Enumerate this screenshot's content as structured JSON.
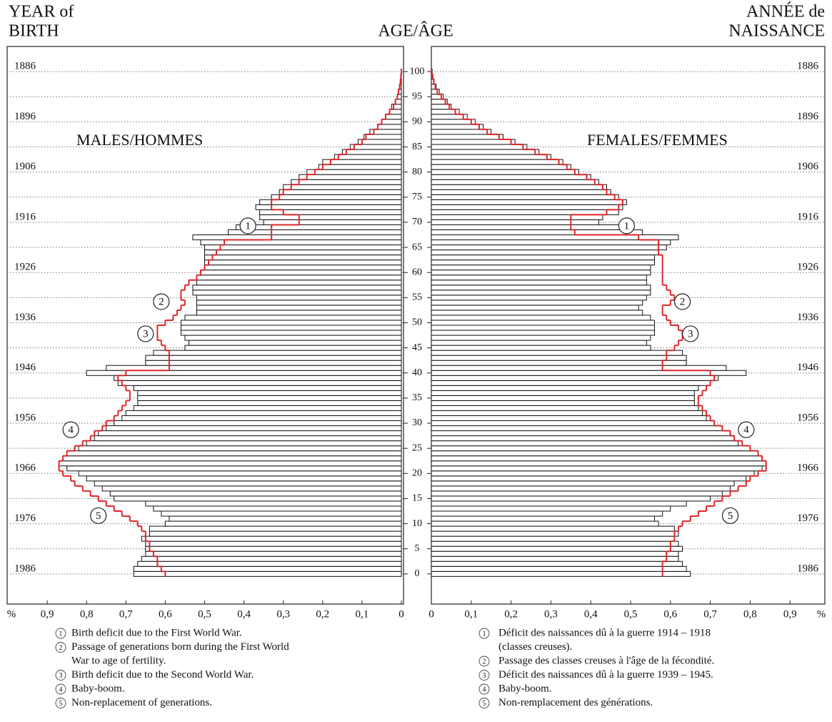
{
  "chart_data": {
    "type": "pyramid",
    "title": "AGE/ÂGE",
    "ylabel_left": [
      "YEAR of",
      "BIRTH"
    ],
    "ylabel_right": [
      "ANNÉE de",
      "NAISSANCE"
    ],
    "xlabel": "%",
    "ages": [
      0,
      1,
      2,
      3,
      4,
      5,
      6,
      7,
      8,
      9,
      10,
      11,
      12,
      13,
      14,
      15,
      16,
      17,
      18,
      19,
      20,
      21,
      22,
      23,
      24,
      25,
      26,
      27,
      28,
      29,
      30,
      31,
      32,
      33,
      34,
      35,
      36,
      37,
      38,
      39,
      40,
      41,
      42,
      43,
      44,
      45,
      46,
      47,
      48,
      49,
      50,
      51,
      52,
      53,
      54,
      55,
      56,
      57,
      58,
      59,
      60,
      61,
      62,
      63,
      64,
      65,
      66,
      67,
      68,
      69,
      70,
      71,
      72,
      73,
      74,
      75,
      76,
      77,
      78,
      79,
      80,
      81,
      82,
      83,
      84,
      85,
      86,
      87,
      88,
      89,
      90,
      91,
      92,
      93,
      94,
      95,
      96,
      97,
      98,
      99,
      100
    ],
    "ylim": [
      -6,
      105
    ],
    "yticks": [
      0,
      5,
      10,
      15,
      20,
      25,
      30,
      35,
      40,
      45,
      50,
      55,
      60,
      65,
      70,
      75,
      80,
      85,
      90,
      95,
      100
    ],
    "y2lim": [
      1992,
      1881
    ],
    "y2ticks": [
      1886,
      1896,
      1906,
      1916,
      1926,
      1936,
      1946,
      1956,
      1966,
      1976,
      1986
    ],
    "xlim": [
      0,
      1.0
    ],
    "xticks": [
      0,
      {
        "value": 0.1,
        "label": "0,1"
      },
      {
        "value": 0.2,
        "label": "0,2"
      },
      {
        "value": 0.3,
        "label": "0,3"
      },
      {
        "value": 0.4,
        "label": "0,4"
      },
      {
        "value": 0.5,
        "label": "0,5"
      },
      {
        "value": 0.6,
        "label": "0,6"
      },
      {
        "value": 0.7,
        "label": "0,7"
      },
      {
        "value": 0.8,
        "label": "0,8"
      },
      {
        "value": 0.9,
        "label": "0,9"
      }
    ],
    "grid": true,
    "series": [
      {
        "name": "MALES/HOMMES",
        "side": "left",
        "style": "bar",
        "color": "#ffffff",
        "values": [
          0.68,
          0.68,
          0.67,
          0.66,
          0.65,
          0.65,
          0.65,
          0.66,
          0.64,
          0.64,
          0.6,
          0.59,
          0.61,
          0.63,
          0.65,
          0.73,
          0.74,
          0.76,
          0.78,
          0.8,
          0.82,
          0.85,
          0.87,
          0.86,
          0.85,
          0.82,
          0.8,
          0.78,
          0.77,
          0.75,
          0.73,
          0.71,
          0.7,
          0.68,
          0.67,
          0.67,
          0.67,
          0.68,
          0.72,
          0.73,
          0.8,
          0.75,
          0.65,
          0.65,
          0.63,
          0.55,
          0.54,
          0.55,
          0.56,
          0.56,
          0.56,
          0.55,
          0.52,
          0.52,
          0.52,
          0.52,
          0.53,
          0.53,
          0.52,
          0.52,
          0.51,
          0.5,
          0.5,
          0.5,
          0.5,
          0.5,
          0.51,
          0.53,
          0.44,
          0.42,
          0.35,
          0.36,
          0.36,
          0.37,
          0.36,
          0.33,
          0.31,
          0.3,
          0.28,
          0.26,
          0.24,
          0.21,
          0.2,
          0.17,
          0.15,
          0.13,
          0.11,
          0.095,
          0.08,
          0.06,
          0.05,
          0.04,
          0.03,
          0.025,
          0.015,
          0.01,
          0.008,
          0.005,
          0.003,
          0.002,
          0.001
        ]
      },
      {
        "side": "left",
        "style": "step",
        "color": "#e0262a",
        "values": [
          0.6,
          0.61,
          0.62,
          0.62,
          0.63,
          0.64,
          0.64,
          0.65,
          0.65,
          0.66,
          0.67,
          0.69,
          0.71,
          0.73,
          0.75,
          0.77,
          0.79,
          0.81,
          0.83,
          0.84,
          0.86,
          0.87,
          0.87,
          0.86,
          0.85,
          0.83,
          0.81,
          0.79,
          0.78,
          0.76,
          0.75,
          0.73,
          0.72,
          0.71,
          0.7,
          0.69,
          0.69,
          0.7,
          0.71,
          0.72,
          0.7,
          0.59,
          0.59,
          0.59,
          0.59,
          0.6,
          0.61,
          0.62,
          0.62,
          0.62,
          0.6,
          0.58,
          0.57,
          0.56,
          0.55,
          0.56,
          0.56,
          0.55,
          0.54,
          0.52,
          0.51,
          0.5,
          0.49,
          0.48,
          0.47,
          0.46,
          0.45,
          0.33,
          0.33,
          0.33,
          0.26,
          0.26,
          0.3,
          0.33,
          0.33,
          0.31,
          0.3,
          0.28,
          0.26,
          0.24,
          0.22,
          0.2,
          0.18,
          0.16,
          0.14,
          0.12,
          0.1,
          0.09,
          0.07,
          0.06,
          0.05,
          0.04,
          0.03,
          0.02,
          0.015,
          0.01,
          0.007,
          0.004,
          0.002,
          0.001,
          0
        ]
      },
      {
        "name": "FEMALES/FEMMES",
        "side": "right",
        "style": "bar",
        "color": "#ffffff",
        "values": [
          0.65,
          0.64,
          0.63,
          0.62,
          0.62,
          0.63,
          0.62,
          0.61,
          0.62,
          0.61,
          0.57,
          0.56,
          0.58,
          0.6,
          0.64,
          0.7,
          0.73,
          0.75,
          0.76,
          0.79,
          0.81,
          0.83,
          0.84,
          0.83,
          0.82,
          0.8,
          0.77,
          0.76,
          0.75,
          0.73,
          0.71,
          0.69,
          0.68,
          0.67,
          0.66,
          0.66,
          0.66,
          0.67,
          0.7,
          0.72,
          0.79,
          0.74,
          0.64,
          0.64,
          0.63,
          0.55,
          0.54,
          0.55,
          0.56,
          0.56,
          0.56,
          0.55,
          0.53,
          0.52,
          0.53,
          0.54,
          0.55,
          0.55,
          0.54,
          0.54,
          0.55,
          0.55,
          0.56,
          0.56,
          0.57,
          0.59,
          0.6,
          0.62,
          0.53,
          0.5,
          0.42,
          0.43,
          0.47,
          0.48,
          0.49,
          0.47,
          0.45,
          0.44,
          0.42,
          0.4,
          0.37,
          0.35,
          0.33,
          0.3,
          0.27,
          0.24,
          0.21,
          0.18,
          0.15,
          0.13,
          0.11,
          0.09,
          0.07,
          0.05,
          0.04,
          0.03,
          0.02,
          0.012,
          0.007,
          0.004,
          0.002
        ]
      },
      {
        "side": "right",
        "style": "step",
        "color": "#e0262a",
        "values": [
          0.58,
          0.58,
          0.58,
          0.59,
          0.59,
          0.6,
          0.6,
          0.61,
          0.61,
          0.62,
          0.63,
          0.65,
          0.67,
          0.69,
          0.71,
          0.73,
          0.75,
          0.77,
          0.79,
          0.8,
          0.82,
          0.84,
          0.84,
          0.83,
          0.82,
          0.8,
          0.78,
          0.76,
          0.75,
          0.73,
          0.71,
          0.7,
          0.69,
          0.68,
          0.67,
          0.67,
          0.68,
          0.69,
          0.7,
          0.71,
          0.7,
          0.58,
          0.58,
          0.59,
          0.59,
          0.61,
          0.62,
          0.63,
          0.63,
          0.62,
          0.6,
          0.59,
          0.58,
          0.58,
          0.6,
          0.61,
          0.6,
          0.59,
          0.58,
          0.58,
          0.58,
          0.58,
          0.58,
          0.58,
          0.57,
          0.57,
          0.57,
          0.52,
          0.36,
          0.35,
          0.35,
          0.35,
          0.44,
          0.47,
          0.48,
          0.46,
          0.44,
          0.43,
          0.41,
          0.39,
          0.36,
          0.34,
          0.32,
          0.29,
          0.26,
          0.23,
          0.2,
          0.17,
          0.14,
          0.12,
          0.1,
          0.08,
          0.06,
          0.045,
          0.035,
          0.025,
          0.015,
          0.01,
          0.006,
          0.003,
          0
        ]
      }
    ],
    "annotations": [
      {
        "label": 1,
        "side": "left",
        "x": 0.39,
        "y": 69.3
      },
      {
        "label": 2,
        "side": "left",
        "x": 0.61,
        "y": 54.2
      },
      {
        "label": 3,
        "side": "left",
        "x": 0.65,
        "y": 47.8
      },
      {
        "label": 4,
        "side": "left",
        "x": 0.84,
        "y": 28.7
      },
      {
        "label": 5,
        "side": "left",
        "x": 0.77,
        "y": 11.6
      },
      {
        "label": 1,
        "side": "right",
        "x": 0.49,
        "y": 69.3
      },
      {
        "label": 2,
        "side": "right",
        "x": 0.63,
        "y": 54.2
      },
      {
        "label": 3,
        "side": "right",
        "x": 0.65,
        "y": 47.8
      },
      {
        "label": 4,
        "side": "right",
        "x": 0.79,
        "y": 28.7
      },
      {
        "label": 5,
        "side": "right",
        "x": 0.75,
        "y": 11.6
      }
    ],
    "notes_en": [
      {
        "num": 1,
        "lines": [
          "Birth deficit due to the First World War."
        ]
      },
      {
        "num": 2,
        "lines": [
          "Passage of generations born during the First World",
          "War to age of fertility."
        ]
      },
      {
        "num": 3,
        "lines": [
          "Birth deficit due to the Second World War."
        ]
      },
      {
        "num": 4,
        "lines": [
          "Baby-boom."
        ]
      },
      {
        "num": 5,
        "lines": [
          "Non-replacement of generations."
        ]
      }
    ],
    "notes_fr": [
      {
        "num": 1,
        "lines": [
          "Déficit des naissances dû à la guerre 1914 – 1918",
          "(classes creuses)."
        ]
      },
      {
        "num": 2,
        "lines": [
          "Passage des classes creuses à l'âge de la fécondité."
        ]
      },
      {
        "num": 3,
        "lines": [
          "Déficit des naissances dû à la guerre 1939 – 1945."
        ]
      },
      {
        "num": 4,
        "lines": [
          "Baby-boom."
        ]
      },
      {
        "num": 5,
        "lines": [
          "Non-remplacement des générations."
        ]
      }
    ]
  }
}
